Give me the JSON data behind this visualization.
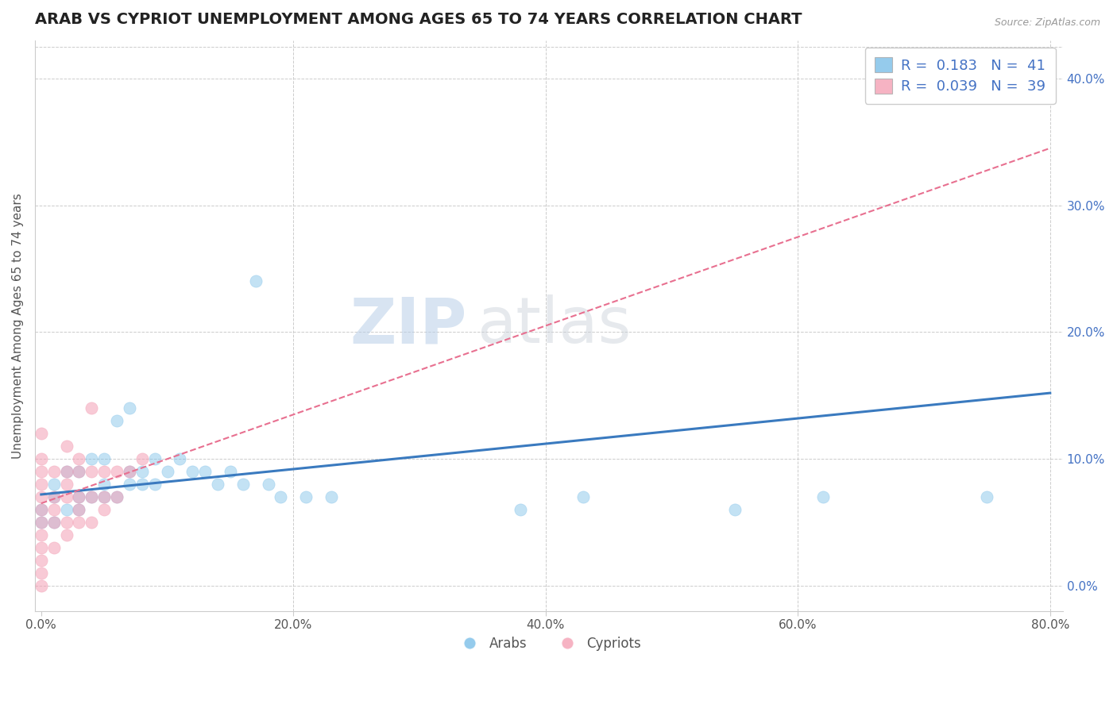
{
  "title": "ARAB VS CYPRIOT UNEMPLOYMENT AMONG AGES 65 TO 74 YEARS CORRELATION CHART",
  "source": "Source: ZipAtlas.com",
  "ylabel": "Unemployment Among Ages 65 to 74 years",
  "xlim": [
    -0.005,
    0.81
  ],
  "ylim": [
    -0.02,
    0.43
  ],
  "xticks": [
    0.0,
    0.2,
    0.4,
    0.6,
    0.8
  ],
  "xtick_labels": [
    "0.0%",
    "20.0%",
    "40.0%",
    "60.0%",
    "80.0%"
  ],
  "yticks_right": [
    0.0,
    0.1,
    0.2,
    0.3,
    0.4
  ],
  "ytick_labels_right": [
    "0.0%",
    "10.0%",
    "20.0%",
    "30.0%",
    "40.0%"
  ],
  "arab_color": "#7bbfe8",
  "cypriot_color": "#f4a0b5",
  "arab_line_color": "#3a7abf",
  "cypriot_line_color": "#e87090",
  "legend_R_arab": "0.183",
  "legend_N_arab": "41",
  "legend_R_cypriot": "0.039",
  "legend_N_cypriot": "39",
  "watermark_zip": "ZIP",
  "watermark_atlas": "atlas",
  "title_fontsize": 14,
  "label_fontsize": 11,
  "tick_fontsize": 11,
  "legend_fontsize": 13,
  "arab_x": [
    0.0,
    0.0,
    0.01,
    0.01,
    0.01,
    0.02,
    0.02,
    0.03,
    0.03,
    0.03,
    0.04,
    0.04,
    0.05,
    0.05,
    0.05,
    0.06,
    0.06,
    0.07,
    0.07,
    0.07,
    0.08,
    0.08,
    0.09,
    0.09,
    0.1,
    0.11,
    0.12,
    0.13,
    0.14,
    0.15,
    0.16,
    0.17,
    0.18,
    0.19,
    0.21,
    0.23,
    0.38,
    0.43,
    0.55,
    0.62,
    0.75
  ],
  "arab_y": [
    0.05,
    0.06,
    0.05,
    0.07,
    0.08,
    0.06,
    0.09,
    0.06,
    0.07,
    0.09,
    0.07,
    0.1,
    0.07,
    0.08,
    0.1,
    0.07,
    0.13,
    0.08,
    0.09,
    0.14,
    0.08,
    0.09,
    0.08,
    0.1,
    0.09,
    0.1,
    0.09,
    0.09,
    0.08,
    0.09,
    0.08,
    0.24,
    0.08,
    0.07,
    0.07,
    0.07,
    0.06,
    0.07,
    0.06,
    0.07,
    0.07
  ],
  "cypriot_x": [
    0.0,
    0.0,
    0.0,
    0.0,
    0.0,
    0.0,
    0.0,
    0.0,
    0.0,
    0.0,
    0.0,
    0.0,
    0.01,
    0.01,
    0.01,
    0.01,
    0.01,
    0.02,
    0.02,
    0.02,
    0.02,
    0.02,
    0.02,
    0.03,
    0.03,
    0.03,
    0.03,
    0.03,
    0.04,
    0.04,
    0.04,
    0.04,
    0.05,
    0.05,
    0.05,
    0.06,
    0.06,
    0.07,
    0.08
  ],
  "cypriot_y": [
    0.0,
    0.01,
    0.02,
    0.03,
    0.04,
    0.05,
    0.06,
    0.07,
    0.08,
    0.09,
    0.1,
    0.12,
    0.03,
    0.05,
    0.06,
    0.07,
    0.09,
    0.04,
    0.05,
    0.07,
    0.08,
    0.09,
    0.11,
    0.05,
    0.06,
    0.07,
    0.09,
    0.1,
    0.05,
    0.07,
    0.09,
    0.14,
    0.06,
    0.07,
    0.09,
    0.07,
    0.09,
    0.09,
    0.1
  ],
  "background_color": "#ffffff",
  "grid_color": "#cccccc",
  "arab_trend_start_y": 0.072,
  "arab_trend_end_y": 0.152,
  "cypriot_trend_start_y": 0.065,
  "cypriot_trend_end_y": 0.345
}
